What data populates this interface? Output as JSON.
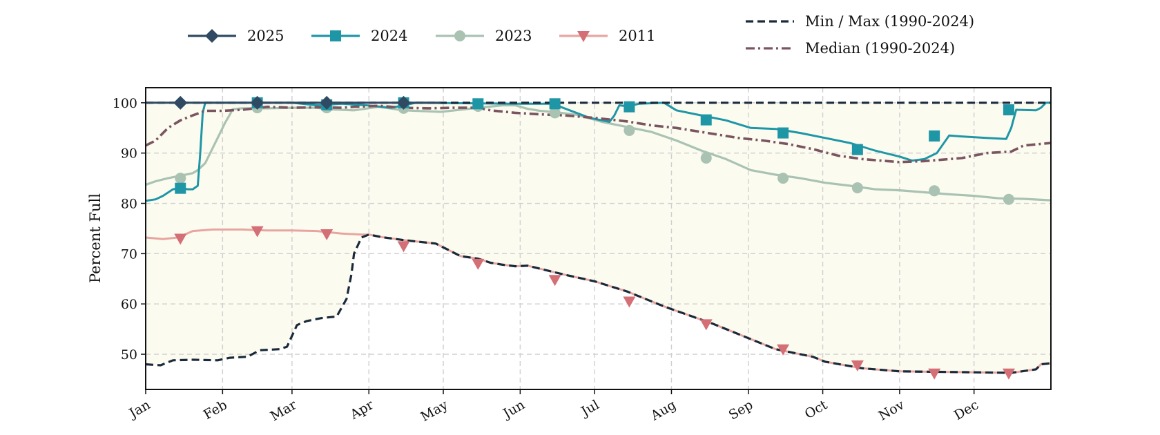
{
  "chart_data": {
    "type": "line",
    "title": "",
    "xlabel": "",
    "ylabel": "Percent Full",
    "ylim": [
      43,
      103
    ],
    "yticks": [
      50,
      60,
      70,
      80,
      90,
      100
    ],
    "xlim": [
      1,
      366
    ],
    "months": [
      "Jan",
      "Feb",
      "Mar",
      "Apr",
      "May",
      "Jun",
      "Jul",
      "Aug",
      "Sep",
      "Oct",
      "Nov",
      "Dec"
    ],
    "month_start_days": [
      1,
      32,
      60,
      91,
      121,
      152,
      182,
      213,
      244,
      274,
      305,
      335
    ],
    "grid": true,
    "shaded_band": "between Min and Max",
    "band_color": "#fbfbf0",
    "legend_placement": "top, above plot",
    "legend": [
      "2025",
      "2024",
      "2023",
      "2011",
      "Min / Max (1990-2024)",
      "Median (1990-2024)"
    ],
    "series": [
      {
        "name": "Max (1990-2024)",
        "key": "max",
        "style": "dashed",
        "color": "#1a2a3a",
        "points": [
          [
            1,
            100
          ],
          [
            366,
            100
          ]
        ]
      },
      {
        "name": "Min (1990-2024)",
        "key": "min",
        "style": "dashed",
        "color": "#1a2a3a",
        "points": [
          [
            1,
            48
          ],
          [
            7,
            47.8
          ],
          [
            12,
            48.8
          ],
          [
            20,
            48.9
          ],
          [
            30,
            48.8
          ],
          [
            35,
            49.3
          ],
          [
            42,
            49.5
          ],
          [
            47,
            50.8
          ],
          [
            55,
            51
          ],
          [
            58,
            51.5
          ],
          [
            62,
            55.8
          ],
          [
            66,
            56.6
          ],
          [
            72,
            57.2
          ],
          [
            78,
            57.5
          ],
          [
            82,
            61
          ],
          [
            84,
            66
          ],
          [
            85,
            70
          ],
          [
            88,
            73.2
          ],
          [
            91,
            73.8
          ],
          [
            96,
            73.3
          ],
          [
            105,
            72.7
          ],
          [
            118,
            72
          ],
          [
            122,
            71
          ],
          [
            128,
            69.5
          ],
          [
            135,
            69
          ],
          [
            140,
            68.2
          ],
          [
            145,
            67.8
          ],
          [
            150,
            67.5
          ],
          [
            155,
            67.6
          ],
          [
            160,
            67
          ],
          [
            170,
            65.8
          ],
          [
            182,
            64.5
          ],
          [
            195,
            62.5
          ],
          [
            210,
            59.5
          ],
          [
            230,
            56
          ],
          [
            245,
            53
          ],
          [
            255,
            51
          ],
          [
            270,
            49.5
          ],
          [
            275,
            48.5
          ],
          [
            290,
            47.2
          ],
          [
            305,
            46.6
          ],
          [
            320,
            46.5
          ],
          [
            335,
            46.4
          ],
          [
            350,
            46.3
          ],
          [
            360,
            47
          ],
          [
            362,
            48
          ],
          [
            366,
            48.2
          ]
        ]
      },
      {
        "name": "Median (1990-2024)",
        "key": "median",
        "style": "dashdot",
        "color": "#7a5560",
        "points": [
          [
            1,
            91.5
          ],
          [
            5,
            92.5
          ],
          [
            10,
            95
          ],
          [
            15,
            96.5
          ],
          [
            20,
            97.5
          ],
          [
            25,
            98.4
          ],
          [
            32,
            98.4
          ],
          [
            40,
            98.6
          ],
          [
            50,
            99.2
          ],
          [
            60,
            99
          ],
          [
            70,
            99.1
          ],
          [
            80,
            99
          ],
          [
            85,
            99.2
          ],
          [
            95,
            99.4
          ],
          [
            105,
            99
          ],
          [
            115,
            98.9
          ],
          [
            125,
            99
          ],
          [
            135,
            99
          ],
          [
            140,
            98.5
          ],
          [
            150,
            98
          ],
          [
            160,
            97.7
          ],
          [
            170,
            97.5
          ],
          [
            182,
            97
          ],
          [
            195,
            96.3
          ],
          [
            205,
            95.5
          ],
          [
            215,
            95
          ],
          [
            225,
            94.2
          ],
          [
            240,
            93
          ],
          [
            250,
            92.5
          ],
          [
            260,
            91.8
          ],
          [
            270,
            90.8
          ],
          [
            280,
            89.5
          ],
          [
            290,
            88.8
          ],
          [
            305,
            88.2
          ],
          [
            315,
            88.4
          ],
          [
            330,
            89
          ],
          [
            340,
            90
          ],
          [
            350,
            90.3
          ],
          [
            355,
            91.5
          ],
          [
            366,
            92
          ]
        ]
      },
      {
        "name": "2023",
        "key": "y2023",
        "style": "solid",
        "color": "#a9c2b2",
        "marker": "circle",
        "points": [
          [
            1,
            83.7
          ],
          [
            5,
            84.4
          ],
          [
            10,
            85
          ],
          [
            15,
            85.5
          ],
          [
            20,
            86
          ],
          [
            22,
            86.6
          ],
          [
            25,
            88
          ],
          [
            28,
            91
          ],
          [
            31,
            94
          ],
          [
            33,
            96
          ],
          [
            35,
            97.7
          ],
          [
            36,
            98.7
          ],
          [
            40,
            98.9
          ],
          [
            50,
            98.9
          ],
          [
            60,
            99
          ],
          [
            70,
            99
          ],
          [
            75,
            98.7
          ],
          [
            85,
            98.5
          ],
          [
            95,
            99.2
          ],
          [
            105,
            98.5
          ],
          [
            120,
            98.2
          ],
          [
            135,
            99
          ],
          [
            145,
            99.5
          ],
          [
            150,
            99.5
          ],
          [
            155,
            98.8
          ],
          [
            160,
            98.4
          ],
          [
            165,
            98.2
          ],
          [
            175,
            97.6
          ],
          [
            185,
            96.2
          ],
          [
            195,
            95.2
          ],
          [
            205,
            94.2
          ],
          [
            215,
            92.5
          ],
          [
            225,
            90.5
          ],
          [
            235,
            88.8
          ],
          [
            245,
            86.6
          ],
          [
            255,
            85.7
          ],
          [
            265,
            85
          ],
          [
            275,
            84.1
          ],
          [
            285,
            83.5
          ],
          [
            295,
            82.8
          ],
          [
            305,
            82.6
          ],
          [
            315,
            82.2
          ],
          [
            325,
            81.8
          ],
          [
            335,
            81.5
          ],
          [
            345,
            81
          ],
          [
            355,
            80.9
          ],
          [
            366,
            80.6
          ]
        ]
      },
      {
        "name": "2024",
        "key": "y2024",
        "style": "solid",
        "color": "#1e96a6",
        "marker": "square",
        "points": [
          [
            1,
            80.5
          ],
          [
            5,
            80.8
          ],
          [
            8,
            81.5
          ],
          [
            12,
            82.8
          ],
          [
            15,
            83
          ],
          [
            18,
            82.8
          ],
          [
            20,
            82.8
          ],
          [
            22,
            83.5
          ],
          [
            23,
            90
          ],
          [
            24,
            98
          ],
          [
            25,
            100
          ],
          [
            60,
            100
          ],
          [
            70,
            99.5
          ],
          [
            80,
            99.8
          ],
          [
            90,
            99.5
          ],
          [
            100,
            99
          ],
          [
            110,
            100
          ],
          [
            150,
            99.8
          ],
          [
            165,
            99.8
          ],
          [
            172,
            98.5
          ],
          [
            180,
            97
          ],
          [
            188,
            96.2
          ],
          [
            190,
            97.5
          ],
          [
            192,
            99.5
          ],
          [
            195,
            99.3
          ],
          [
            200,
            99.8
          ],
          [
            210,
            100
          ],
          [
            215,
            98.5
          ],
          [
            225,
            97.5
          ],
          [
            235,
            96.5
          ],
          [
            245,
            95
          ],
          [
            255,
            94.8
          ],
          [
            265,
            94
          ],
          [
            275,
            93
          ],
          [
            285,
            92
          ],
          [
            295,
            90.5
          ],
          [
            305,
            89.3
          ],
          [
            310,
            88.5
          ],
          [
            315,
            88.8
          ],
          [
            320,
            90
          ],
          [
            325,
            93.5
          ],
          [
            330,
            93.3
          ],
          [
            340,
            93
          ],
          [
            348,
            92.8
          ],
          [
            350,
            95
          ],
          [
            352,
            98.6
          ],
          [
            360,
            98.5
          ],
          [
            362,
            99
          ],
          [
            364,
            100
          ],
          [
            366,
            100
          ]
        ]
      },
      {
        "name": "2011",
        "key": "y2011",
        "style": "solid",
        "color": "#e8a5a0",
        "marker": "triangle-down",
        "points": [
          [
            1,
            73.2
          ],
          [
            8,
            72.9
          ],
          [
            14,
            73.2
          ],
          [
            20,
            74.5
          ],
          [
            28,
            74.8
          ],
          [
            40,
            74.8
          ],
          [
            50,
            74.6
          ],
          [
            60,
            74.6
          ],
          [
            70,
            74.5
          ],
          [
            80,
            74
          ],
          [
            88,
            73.8
          ],
          [
            91,
            73.8
          ],
          [
            96,
            73.3
          ],
          [
            105,
            72.7
          ],
          [
            118,
            72
          ],
          [
            122,
            71
          ],
          [
            128,
            69.5
          ],
          [
            135,
            69
          ],
          [
            140,
            68.2
          ],
          [
            145,
            67.8
          ],
          [
            150,
            67.5
          ],
          [
            155,
            67.6
          ],
          [
            160,
            67
          ],
          [
            170,
            65.8
          ],
          [
            182,
            64.5
          ],
          [
            195,
            62.5
          ],
          [
            210,
            59.5
          ],
          [
            230,
            56
          ],
          [
            245,
            53
          ],
          [
            255,
            51
          ],
          [
            270,
            49.5
          ],
          [
            275,
            48.5
          ],
          [
            290,
            47.2
          ],
          [
            305,
            46.6
          ],
          [
            320,
            46.5
          ],
          [
            335,
            46.4
          ],
          [
            350,
            46.3
          ],
          [
            360,
            47
          ],
          [
            362,
            48
          ],
          [
            366,
            48.2
          ]
        ]
      },
      {
        "name": "2025",
        "key": "y2025",
        "style": "solid",
        "color": "#2f4a62",
        "marker": "diamond",
        "points": [
          [
            1,
            100
          ],
          [
            120,
            100
          ]
        ]
      }
    ],
    "markers": {
      "y2025": [
        [
          15,
          100
        ],
        [
          46,
          100
        ],
        [
          74,
          100
        ],
        [
          105,
          100
        ]
      ],
      "y2024": [
        [
          15,
          83
        ],
        [
          46,
          100
        ],
        [
          74,
          99.6
        ],
        [
          105,
          100
        ],
        [
          135,
          99.8
        ],
        [
          166,
          99.8
        ],
        [
          196,
          99.2
        ],
        [
          227,
          96.6
        ],
        [
          258,
          94
        ],
        [
          288,
          90.7
        ],
        [
          319,
          93.4
        ],
        [
          349,
          98.6
        ]
      ],
      "y2023": [
        [
          15,
          85
        ],
        [
          46,
          99
        ],
        [
          74,
          99
        ],
        [
          105,
          98.9
        ],
        [
          135,
          99.3
        ],
        [
          166,
          98
        ],
        [
          196,
          94.5
        ],
        [
          227,
          89
        ],
        [
          258,
          85
        ],
        [
          288,
          83.1
        ],
        [
          319,
          82.5
        ],
        [
          349,
          80.8
        ]
      ],
      "y2011": [
        [
          15,
          73
        ],
        [
          46,
          74.5
        ],
        [
          74,
          73.9
        ],
        [
          105,
          71.5
        ],
        [
          135,
          68
        ],
        [
          166,
          64.8
        ],
        [
          196,
          60.5
        ],
        [
          227,
          56
        ],
        [
          258,
          51
        ],
        [
          288,
          47.8
        ],
        [
          319,
          46.2
        ],
        [
          349,
          46.2
        ]
      ]
    }
  }
}
